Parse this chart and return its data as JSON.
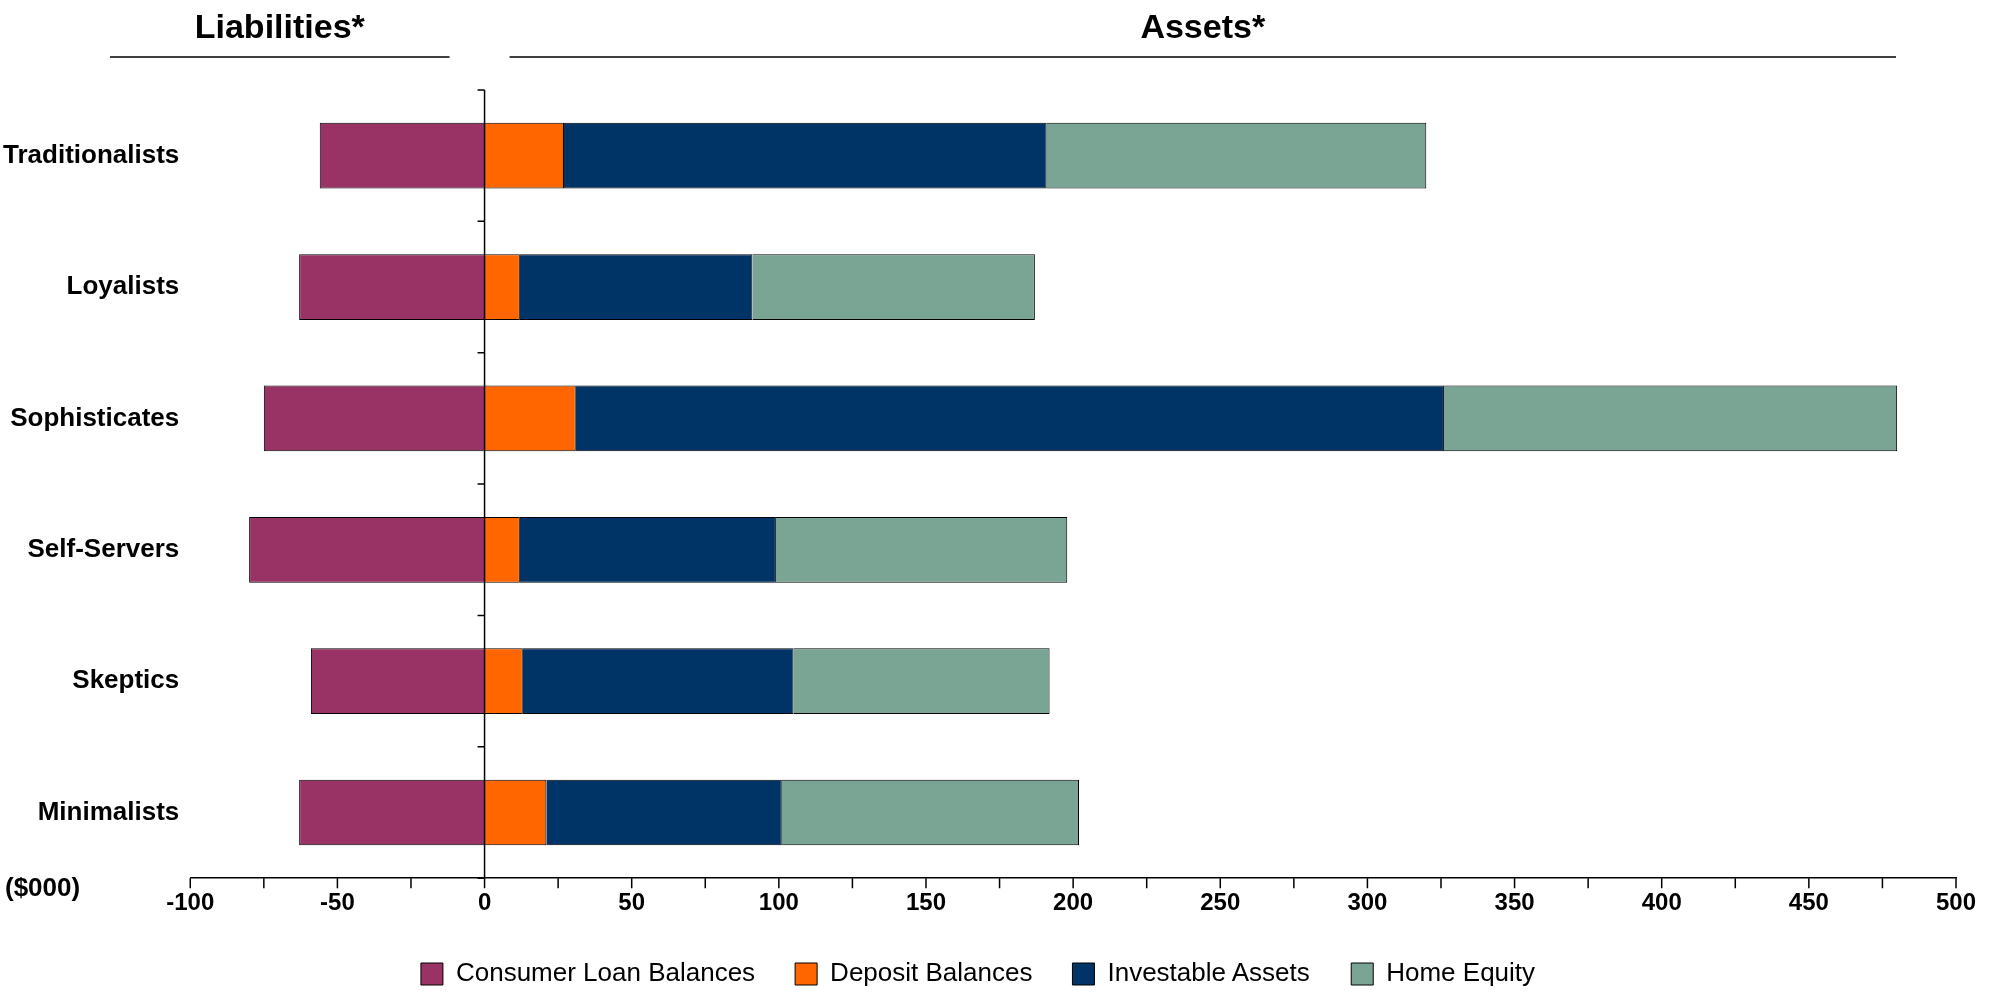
{
  "chart_data": {
    "type": "bar",
    "orientation": "horizontal",
    "stacked": true,
    "annotations": [
      "Liabilities*",
      "Assets*"
    ],
    "xlabel": "($000)",
    "categories": [
      "Traditionalists",
      "Loyalists",
      "Sophisticates",
      "Self-Servers",
      "Skeptics",
      "Minimalists"
    ],
    "series": [
      {
        "name": "Consumer Loan Balances",
        "color": "#993366",
        "values": [
          -56,
          -63,
          -75,
          -80,
          -59,
          -63
        ]
      },
      {
        "name": "Deposit Balances",
        "color": "#ff6600",
        "values": [
          27,
          12,
          31,
          12,
          13,
          21
        ]
      },
      {
        "name": "Investable Assets",
        "color": "#003366",
        "values": [
          164,
          79,
          295,
          87,
          92,
          80
        ]
      },
      {
        "name": "Home Equity",
        "color": "#7aa595",
        "values": [
          129,
          96,
          154,
          99,
          87,
          101
        ]
      }
    ],
    "xlim": [
      -100,
      500
    ],
    "xticks": [
      -100,
      {
        "value": -75,
        "label": null
      },
      -50,
      {
        "value": -25,
        "label": null
      },
      0,
      {
        "value": 25,
        "label": null
      },
      50,
      {
        "value": 75,
        "label": null
      },
      100,
      {
        "value": 125,
        "label": null
      },
      150,
      {
        "value": 175,
        "label": null
      },
      200,
      {
        "value": 225,
        "label": null
      },
      250,
      {
        "value": 275,
        "label": null
      },
      300,
      {
        "value": 325,
        "label": null
      },
      350,
      {
        "value": 375,
        "label": null
      },
      400,
      {
        "value": 425,
        "label": null
      },
      450,
      {
        "value": 475,
        "label": null
      },
      500
    ],
    "ref_lines": [
      {
        "axis": "x",
        "value": 0,
        "color": "#000000"
      }
    ],
    "grid": false,
    "legend": "bottom"
  }
}
